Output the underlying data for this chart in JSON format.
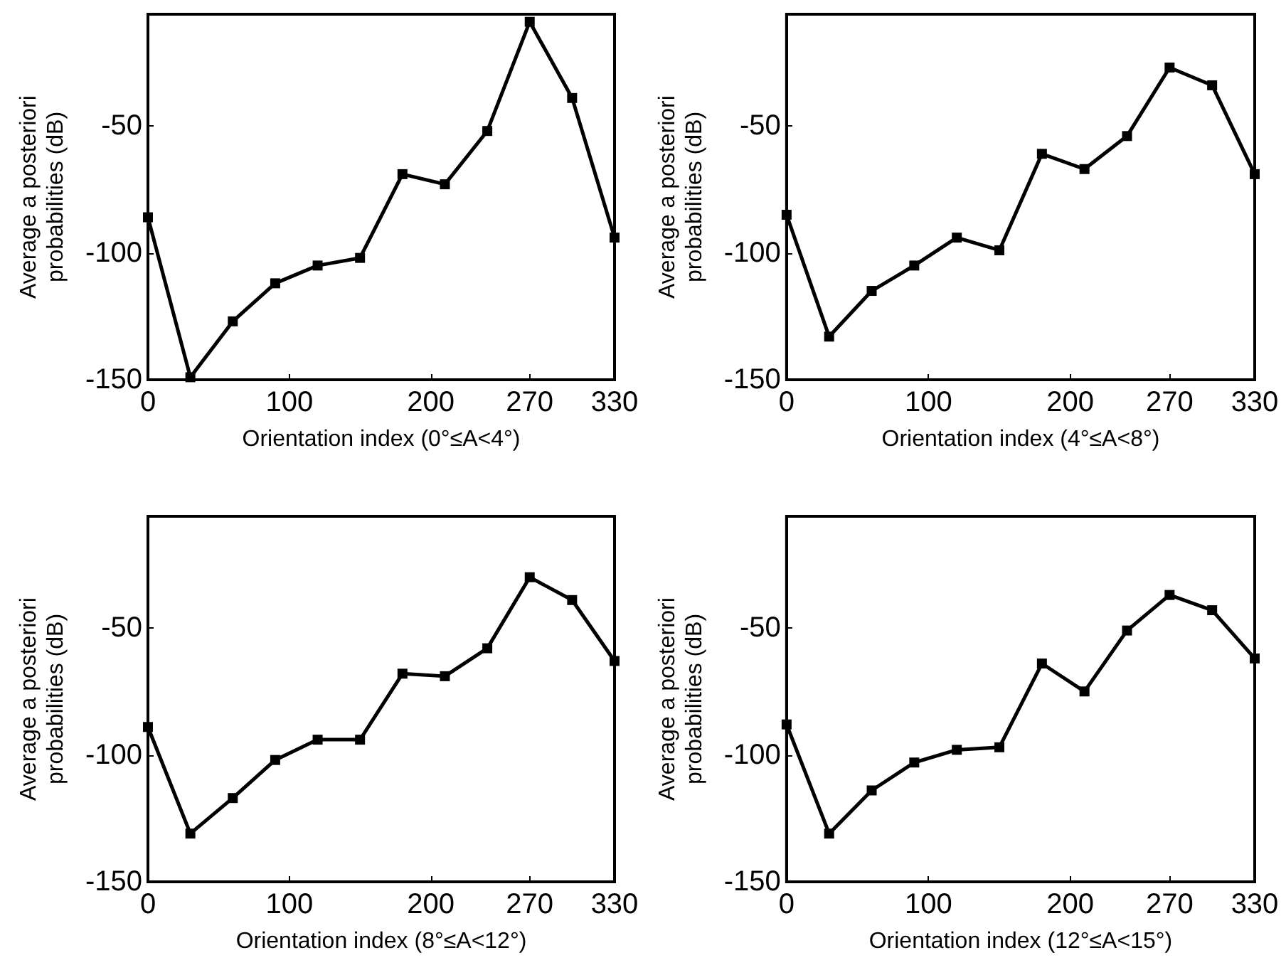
{
  "chart_data": [
    {
      "type": "line",
      "xlabel": "Orientation index (0°≤A<4°)",
      "ylabel": "Average a posteriori\nprobabilities (dB)",
      "x": [
        0,
        30,
        60,
        90,
        120,
        150,
        180,
        210,
        240,
        270,
        300,
        330
      ],
      "xlim": [
        0,
        330
      ],
      "xticks": [
        0,
        100,
        200,
        270,
        330
      ],
      "ylim": [
        -150,
        -6
      ],
      "yticks": [
        -150,
        -100,
        -50
      ],
      "marker": "square",
      "line_style": "solid",
      "series": [
        {
          "color": "#000000",
          "values": [
            -86,
            -149,
            -127,
            -112,
            -105,
            -102,
            -69,
            -73,
            -52,
            -9,
            -39,
            -94
          ]
        }
      ]
    },
    {
      "type": "line",
      "xlabel": "Orientation index (4°≤A<8°)",
      "ylabel": "Average a posteriori\nprobabilities (dB)",
      "x": [
        0,
        30,
        60,
        90,
        120,
        150,
        180,
        210,
        240,
        270,
        300,
        330
      ],
      "xlim": [
        0,
        330
      ],
      "xticks": [
        0,
        100,
        200,
        270,
        330
      ],
      "ylim": [
        -150,
        -6
      ],
      "yticks": [
        -150,
        -100,
        -50
      ],
      "marker": "square",
      "line_style": "solid",
      "series": [
        {
          "color": "#000000",
          "values": [
            -85,
            -133,
            -115,
            -105,
            -94,
            -99,
            -61,
            -67,
            -54,
            -27,
            -34,
            -69
          ]
        }
      ]
    },
    {
      "type": "line",
      "xlabel": "Orientation index (8°≤A<12°)",
      "ylabel": "Average a posteriori\nprobabilities (dB)",
      "x": [
        0,
        30,
        60,
        90,
        120,
        150,
        180,
        210,
        240,
        270,
        300,
        330
      ],
      "xlim": [
        0,
        330
      ],
      "xticks": [
        0,
        100,
        200,
        270,
        330
      ],
      "ylim": [
        -150,
        -6
      ],
      "yticks": [
        -150,
        -100,
        -50
      ],
      "marker": "square",
      "line_style": "solid",
      "series": [
        {
          "color": "#000000",
          "values": [
            -89,
            -131,
            -117,
            -102,
            -94,
            -94,
            -68,
            -69,
            -58,
            -30,
            -39,
            -63
          ]
        }
      ]
    },
    {
      "type": "line",
      "xlabel": "Orientation index (12°≤A<15°)",
      "ylabel": "Average a posteriori\nprobabilities (dB)",
      "x": [
        0,
        30,
        60,
        90,
        120,
        150,
        180,
        210,
        240,
        270,
        300,
        330
      ],
      "xlim": [
        0,
        330
      ],
      "xticks": [
        0,
        100,
        200,
        270,
        330
      ],
      "ylim": [
        -150,
        -6
      ],
      "yticks": [
        -150,
        -100,
        -50
      ],
      "marker": "square",
      "line_style": "solid",
      "series": [
        {
          "color": "#000000",
          "values": [
            -88,
            -131,
            -114,
            -103,
            -98,
            -97,
            -64,
            -75,
            -51,
            -37,
            -43,
            -62
          ]
        }
      ]
    }
  ]
}
